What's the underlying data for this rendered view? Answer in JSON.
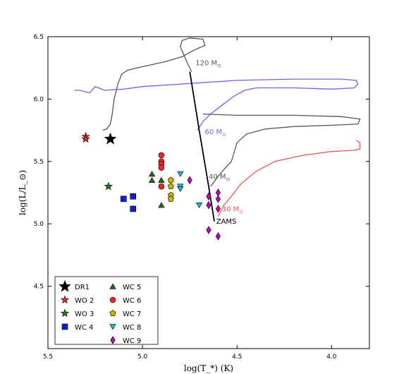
{
  "chart_data": {
    "type": "scatter",
    "title": "",
    "xlabel": "log(T_*) (K)",
    "ylabel": "log(L/L_⊙)",
    "xlim": [
      5.5,
      3.8
    ],
    "ylim": [
      4.0,
      6.5
    ],
    "x_reversed": true,
    "grid": false,
    "legend_position": "lower-left",
    "x_ticks": [
      "5.5",
      "5.0",
      "4.5",
      "4.0"
    ],
    "y_ticks": [
      "4.5",
      "5.0",
      "5.5",
      "6.0",
      "6.5"
    ],
    "series": [
      {
        "name": "DR1",
        "marker": "star",
        "color": "#000000",
        "points": [
          [
            5.17,
            5.68
          ]
        ]
      },
      {
        "name": "WO 2",
        "marker": "star",
        "color": "#e8282b",
        "points": [
          [
            5.3,
            5.7
          ],
          [
            5.3,
            5.68
          ]
        ]
      },
      {
        "name": "WO 3",
        "marker": "star",
        "color": "#1f7a1f",
        "points": [
          [
            5.18,
            5.3
          ]
        ]
      },
      {
        "name": "WC 4",
        "marker": "square",
        "color": "#1020d0",
        "points": [
          [
            5.1,
            5.2
          ],
          [
            5.05,
            5.22
          ],
          [
            5.05,
            5.12
          ]
        ]
      },
      {
        "name": "WC 5",
        "marker": "triangle-up",
        "color": "#1a6b1a",
        "points": [
          [
            4.95,
            5.4
          ],
          [
            4.95,
            5.35
          ],
          [
            4.9,
            5.35
          ],
          [
            4.9,
            5.15
          ]
        ]
      },
      {
        "name": "WC 6",
        "marker": "circle",
        "color": "#e8282b",
        "points": [
          [
            4.9,
            5.55
          ],
          [
            4.9,
            5.5
          ],
          [
            4.9,
            5.48
          ],
          [
            4.9,
            5.45
          ],
          [
            4.9,
            5.3
          ]
        ]
      },
      {
        "name": "WC 7",
        "marker": "pentagon",
        "color": "#c8b400",
        "points": [
          [
            4.85,
            5.35
          ],
          [
            4.85,
            5.3
          ],
          [
            4.85,
            5.23
          ],
          [
            4.85,
            5.2
          ]
        ]
      },
      {
        "name": "WC 8",
        "marker": "triangle-down",
        "color": "#20b8c0",
        "points": [
          [
            4.8,
            5.4
          ],
          [
            4.8,
            5.3
          ],
          [
            4.8,
            5.28
          ],
          [
            4.7,
            5.15
          ]
        ]
      },
      {
        "name": "WC 9",
        "marker": "diamond",
        "color": "#c000c0",
        "points": [
          [
            4.75,
            5.35
          ],
          [
            4.65,
            5.22
          ],
          [
            4.65,
            5.15
          ],
          [
            4.6,
            5.25
          ],
          [
            4.6,
            5.2
          ],
          [
            4.6,
            5.12
          ],
          [
            4.65,
            4.95
          ],
          [
            4.6,
            4.9
          ]
        ]
      }
    ],
    "tracks": [
      {
        "label": "120 M",
        "label_sub": "⊙",
        "color": "#555555",
        "label_at": [
          4.72,
          6.27
        ],
        "points": [
          [
            4.74,
            6.22
          ],
          [
            4.76,
            6.28
          ],
          [
            4.78,
            6.35
          ],
          [
            4.8,
            6.42
          ],
          [
            4.79,
            6.47
          ],
          [
            4.75,
            6.49
          ],
          [
            4.68,
            6.48
          ],
          [
            4.67,
            6.43
          ],
          [
            4.73,
            6.39
          ],
          [
            4.79,
            6.34
          ],
          [
            4.88,
            6.3
          ],
          [
            4.97,
            6.27
          ],
          [
            5.03,
            6.25
          ],
          [
            5.08,
            6.23
          ],
          [
            5.11,
            6.2
          ],
          [
            5.13,
            6.12
          ],
          [
            5.15,
            6.0
          ],
          [
            5.16,
            5.88
          ],
          [
            5.17,
            5.8
          ],
          [
            5.19,
            5.76
          ],
          [
            5.21,
            5.75
          ]
        ]
      },
      {
        "label": "60 M",
        "label_sub": "⊙",
        "color": "#6666ee",
        "label_at": [
          4.67,
          5.72
        ],
        "points": [
          [
            4.71,
            5.75
          ],
          [
            4.68,
            5.82
          ],
          [
            4.64,
            5.88
          ],
          [
            4.58,
            5.95
          ],
          [
            4.52,
            6.02
          ],
          [
            4.46,
            6.07
          ],
          [
            4.4,
            6.09
          ],
          [
            4.2,
            6.09
          ],
          [
            4.0,
            6.08
          ],
          [
            3.88,
            6.09
          ],
          [
            3.86,
            6.12
          ],
          [
            3.87,
            6.15
          ],
          [
            3.95,
            6.16
          ],
          [
            4.2,
            6.16
          ],
          [
            4.5,
            6.15
          ],
          [
            4.8,
            6.12
          ],
          [
            5.0,
            6.1
          ],
          [
            5.1,
            6.08
          ],
          [
            5.2,
            6.07
          ],
          [
            5.25,
            6.1
          ],
          [
            5.28,
            6.05
          ],
          [
            5.33,
            6.07
          ],
          [
            5.36,
            6.07
          ]
        ]
      },
      {
        "label": "40 M",
        "label_sub": "⊙",
        "color": "#555555",
        "label_at": [
          4.65,
          5.36
        ],
        "points": [
          [
            4.64,
            5.3
          ],
          [
            4.6,
            5.38
          ],
          [
            4.56,
            5.45
          ],
          [
            4.53,
            5.5
          ],
          [
            4.5,
            5.65
          ],
          [
            4.45,
            5.72
          ],
          [
            4.35,
            5.76
          ],
          [
            4.2,
            5.78
          ],
          [
            4.0,
            5.79
          ],
          [
            3.86,
            5.8
          ],
          [
            3.85,
            5.84
          ],
          [
            3.95,
            5.86
          ],
          [
            4.2,
            5.87
          ],
          [
            4.5,
            5.87
          ],
          [
            4.68,
            5.88
          ]
        ]
      },
      {
        "label": "30 M",
        "label_sub": "⊙",
        "color": "#ee5555",
        "label_at": [
          4.58,
          5.1
        ],
        "points": [
          [
            4.6,
            5.06
          ],
          [
            4.57,
            5.15
          ],
          [
            4.53,
            5.22
          ],
          [
            4.48,
            5.32
          ],
          [
            4.4,
            5.42
          ],
          [
            4.3,
            5.5
          ],
          [
            4.15,
            5.55
          ],
          [
            4.0,
            5.58
          ],
          [
            3.88,
            5.59
          ],
          [
            3.85,
            5.6
          ],
          [
            3.85,
            5.65
          ],
          [
            3.87,
            5.67
          ]
        ]
      }
    ],
    "zams": {
      "label": "ZAMS",
      "color": "#000000",
      "label_at": [
        4.61,
        5.0
      ],
      "points": [
        [
          4.75,
          6.22
        ],
        [
          4.7,
          5.75
        ],
        [
          4.65,
          5.3
        ],
        [
          4.62,
          5.02
        ]
      ]
    }
  }
}
